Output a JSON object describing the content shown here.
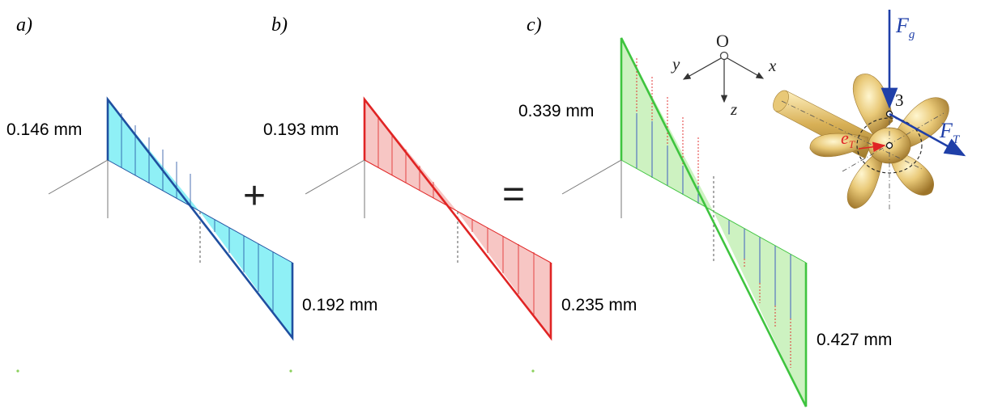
{
  "panels": [
    {
      "label": "a)",
      "value": "0.146 mm",
      "end_value": "0.192 mm"
    },
    {
      "label": "b)",
      "value": "0.193 mm",
      "end_value": "0.235 mm"
    },
    {
      "label": "c)",
      "value": "0.339 mm",
      "end_value": "0.427 mm"
    }
  ],
  "operators": {
    "plus": "+",
    "equals": "="
  },
  "axes": {
    "origin": "O",
    "x": "x",
    "y": "y",
    "z": "z"
  },
  "propeller": {
    "force_g": "F",
    "force_g_sub": "g",
    "force_t": "F",
    "force_t_sub": "T",
    "ecc": "e",
    "ecc_sub": "T",
    "point": "3"
  },
  "colors": {
    "cyan_fill": "#8ff0f6",
    "cyan_stroke": "#1f4fa0",
    "red_fill": "#f7c6c4",
    "red_stroke": "#e02424",
    "green_fill": "#cdf2c1",
    "green_stroke": "#3fc43f",
    "vector_blue": "#1f3fa8"
  }
}
